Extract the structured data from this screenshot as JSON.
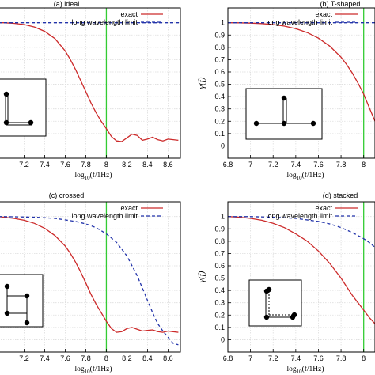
{
  "chart_data": [
    {
      "panel": "a",
      "type": "line",
      "title": "(a) ideal",
      "xlabel": "log10(f/1Hz)",
      "ylabel": "",
      "xlim": [
        6.95,
        8.72
      ],
      "ylim": [
        -0.1,
        1.12
      ],
      "xticks": [
        "7.2",
        "7.4",
        "7.6",
        "7.8",
        "8",
        "8.2",
        "8.4",
        "8.6"
      ],
      "xtick_values": [
        7.2,
        7.4,
        7.6,
        7.8,
        8.0,
        8.2,
        8.4,
        8.6
      ],
      "yticks": [],
      "grid": true,
      "legend": "top-right",
      "vline_x": 8.0,
      "inset": "L",
      "series": [
        {
          "name": "exact",
          "color": "#cc2a2a",
          "dash": false,
          "x": [
            6.95,
            7.0,
            7.1,
            7.2,
            7.3,
            7.4,
            7.5,
            7.6,
            7.65,
            7.7,
            7.75,
            7.8,
            7.85,
            7.9,
            7.95,
            8.0,
            8.05,
            8.1,
            8.15,
            8.2,
            8.25,
            8.3,
            8.35,
            8.4,
            8.45,
            8.5,
            8.55,
            8.6,
            8.65,
            8.7
          ],
          "y": [
            1.0,
            1.0,
            0.995,
            0.985,
            0.965,
            0.93,
            0.87,
            0.77,
            0.7,
            0.62,
            0.53,
            0.44,
            0.35,
            0.27,
            0.2,
            0.14,
            0.075,
            0.04,
            0.035,
            0.065,
            0.095,
            0.085,
            0.045,
            0.055,
            0.07,
            0.05,
            0.04,
            0.055,
            0.05,
            0.045
          ]
        },
        {
          "name": "long wavelength limit",
          "color": "#2233aa",
          "dash": true,
          "x": [
            6.95,
            8.72
          ],
          "y": [
            1.0,
            1.0
          ]
        }
      ]
    },
    {
      "panel": "b",
      "type": "line",
      "title": "(b) T-shaped",
      "xlabel": "log10(f/1Hz)",
      "ylabel": "γ(f)",
      "xlim": [
        6.8,
        8.1
      ],
      "ylim": [
        -0.1,
        1.12
      ],
      "xticks": [
        "6.8",
        "7",
        "7.2",
        "7.4",
        "7.6",
        "7.8",
        "8"
      ],
      "xtick_values": [
        6.8,
        7.0,
        7.2,
        7.4,
        7.6,
        7.8,
        8.0
      ],
      "yticks": [
        "0",
        "0.1",
        "0.2",
        "0.3",
        "0.4",
        "0.5",
        "0.6",
        "0.7",
        "0.8",
        "0.9",
        "1"
      ],
      "ytick_values": [
        0,
        0.1,
        0.2,
        0.3,
        0.4,
        0.5,
        0.6,
        0.7,
        0.8,
        0.9,
        1.0
      ],
      "grid": true,
      "legend": "top-right",
      "vline_x": 8.0,
      "inset": "T",
      "series": [
        {
          "name": "exact",
          "color": "#cc2a2a",
          "dash": false,
          "x": [
            6.8,
            6.9,
            7.0,
            7.1,
            7.2,
            7.3,
            7.4,
            7.5,
            7.6,
            7.7,
            7.8,
            7.85,
            7.9,
            7.95,
            8.0,
            8.05,
            8.1
          ],
          "y": [
            1.0,
            0.999,
            0.997,
            0.993,
            0.985,
            0.972,
            0.952,
            0.92,
            0.875,
            0.81,
            0.72,
            0.66,
            0.59,
            0.51,
            0.42,
            0.31,
            0.2
          ]
        },
        {
          "name": "long wavelength limit",
          "color": "#2233aa",
          "dash": true,
          "x": [
            6.8,
            8.1
          ],
          "y": [
            1.0,
            1.0
          ]
        }
      ]
    },
    {
      "panel": "c",
      "type": "line",
      "title": "(c) crossed",
      "xlabel": "log10(f/1Hz)",
      "ylabel": "",
      "xlim": [
        6.95,
        8.72
      ],
      "ylim": [
        -0.1,
        1.12
      ],
      "xticks": [
        "7.2",
        "7.4",
        "7.6",
        "7.8",
        "8",
        "8.2",
        "8.4",
        "8.6"
      ],
      "xtick_values": [
        7.2,
        7.4,
        7.6,
        7.8,
        8.0,
        8.2,
        8.4,
        8.6
      ],
      "yticks": [],
      "grid": true,
      "legend": "top-right",
      "vline_x": 8.0,
      "inset": "cross",
      "series": [
        {
          "name": "exact",
          "color": "#cc2a2a",
          "dash": false,
          "x": [
            6.95,
            7.0,
            7.1,
            7.2,
            7.3,
            7.4,
            7.5,
            7.6,
            7.65,
            7.7,
            7.75,
            7.8,
            7.85,
            7.9,
            7.95,
            8.0,
            8.05,
            8.1,
            8.15,
            8.2,
            8.25,
            8.3,
            8.35,
            8.4,
            8.45,
            8.5,
            8.55,
            8.6,
            8.65,
            8.7
          ],
          "y": [
            1.0,
            0.995,
            0.985,
            0.97,
            0.945,
            0.905,
            0.845,
            0.76,
            0.7,
            0.63,
            0.55,
            0.46,
            0.37,
            0.29,
            0.22,
            0.15,
            0.09,
            0.06,
            0.065,
            0.09,
            0.1,
            0.085,
            0.07,
            0.075,
            0.08,
            0.065,
            0.06,
            0.07,
            0.065,
            0.06
          ]
        },
        {
          "name": "long wavelength limit",
          "color": "#2233aa",
          "dash": true,
          "x": [
            6.95,
            7.1,
            7.3,
            7.5,
            7.7,
            7.8,
            7.9,
            8.0,
            8.1,
            8.2,
            8.3,
            8.35,
            8.4,
            8.45,
            8.5,
            8.55,
            8.6,
            8.65,
            8.7
          ],
          "y": [
            1.0,
            0.998,
            0.995,
            0.985,
            0.96,
            0.94,
            0.91,
            0.86,
            0.79,
            0.68,
            0.52,
            0.42,
            0.32,
            0.22,
            0.13,
            0.07,
            0.02,
            -0.03,
            -0.04
          ]
        }
      ]
    },
    {
      "panel": "d",
      "type": "line",
      "title": "(d) stacked",
      "xlabel": "log10(f/1Hz)",
      "ylabel": "γ(f)",
      "xlim": [
        6.8,
        8.1
      ],
      "ylim": [
        -0.1,
        1.12
      ],
      "xticks": [
        "6.8",
        "7",
        "7.2",
        "7.4",
        "7.6",
        "7.8",
        "8"
      ],
      "xtick_values": [
        6.8,
        7.0,
        7.2,
        7.4,
        7.6,
        7.8,
        8.0
      ],
      "yticks": [
        "0",
        "0.1",
        "0.2",
        "0.3",
        "0.4",
        "0.5",
        "0.6",
        "0.7",
        "0.8",
        "0.9",
        "1"
      ],
      "ytick_values": [
        0,
        0.1,
        0.2,
        0.3,
        0.4,
        0.5,
        0.6,
        0.7,
        0.8,
        0.9,
        1.0
      ],
      "grid": true,
      "legend": "top-right",
      "vline_x": 8.0,
      "inset": "stacked",
      "series": [
        {
          "name": "exact",
          "color": "#cc2a2a",
          "dash": false,
          "x": [
            6.8,
            6.9,
            7.0,
            7.1,
            7.2,
            7.3,
            7.4,
            7.5,
            7.6,
            7.7,
            7.8,
            7.85,
            7.9,
            7.95,
            8.0,
            8.05,
            8.1
          ],
          "y": [
            1.0,
            0.995,
            0.985,
            0.97,
            0.945,
            0.91,
            0.86,
            0.8,
            0.72,
            0.62,
            0.5,
            0.43,
            0.36,
            0.3,
            0.24,
            0.18,
            0.13
          ]
        },
        {
          "name": "long wavelength limit",
          "color": "#2233aa",
          "dash": true,
          "x": [
            6.8,
            7.0,
            7.2,
            7.4,
            7.6,
            7.7,
            7.8,
            7.9,
            8.0,
            8.05,
            8.1
          ],
          "y": [
            1.0,
            0.999,
            0.995,
            0.985,
            0.96,
            0.94,
            0.91,
            0.87,
            0.82,
            0.79,
            0.75
          ]
        }
      ]
    }
  ],
  "colors": {
    "vline": "#33cc33",
    "grid": "#dddddd",
    "frame": "#000000"
  }
}
